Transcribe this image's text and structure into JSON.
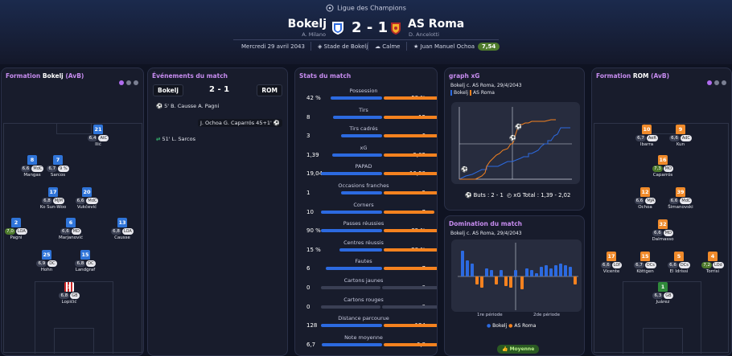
{
  "competition": "Ligue des Champions",
  "home": {
    "name": "Bokelj",
    "coach": "A. Milano",
    "score": "2"
  },
  "away": {
    "name": "AS Roma",
    "coach": "D. Ancelotti",
    "score": "1"
  },
  "score_sep": "-",
  "date": "Mercredi 29 avril 2043",
  "stadium": "Stade de Bokelj",
  "weather": "Calme",
  "referee": "Juan Manuel Ochoa",
  "referee_rating": "7,54",
  "colors": {
    "home": "#2c6ae0",
    "away": "#f5821f",
    "accent": "#c78cf0"
  },
  "lineup_home": {
    "title": "Formation",
    "team": "Bokelj",
    "formation": "(AvB)",
    "players": [
      {
        "num": "21",
        "rating": "6,4",
        "pos": "AtC",
        "name": "Ilić"
      },
      {
        "num": "8",
        "rating": "6,6",
        "pos": "MdC",
        "name": "Mangas"
      },
      {
        "num": "7",
        "rating": "6,7",
        "pos": "9 %",
        "name": "Sarcos"
      },
      {
        "num": "17",
        "rating": "6,8",
        "pos": "MJM",
        "name": "Ko Sun-Woo"
      },
      {
        "num": "20",
        "rating": "6,6",
        "pos": "MdC",
        "name": "Vukčević"
      },
      {
        "num": "2",
        "rating": "7,0",
        "pos": "LOA",
        "name": "Pagni"
      },
      {
        "num": "6",
        "rating": "6,6",
        "pos": "MD",
        "name": "Marjanović"
      },
      {
        "num": "13",
        "rating": "6,8",
        "pos": "LOA",
        "name": "Causse"
      },
      {
        "num": "25",
        "rating": "6,9",
        "pos": "DC",
        "name": "Hohn"
      },
      {
        "num": "15",
        "rating": "6,8",
        "pos": "DC",
        "name": "Landgraf"
      },
      {
        "num": "1",
        "rating": "6,8",
        "pos": "GB",
        "name": "Lopičić"
      }
    ]
  },
  "events": {
    "title": "Événements du match",
    "home": "Bokelj",
    "away": "ROM",
    "score": "2 - 1",
    "rows": [
      {
        "side": "left",
        "icon": "ball",
        "text": "5' B. Causse A. Pagni"
      },
      {
        "side": "right",
        "icon": "ball",
        "text": "J. Ochoa G. Caparrós 45+1'"
      },
      {
        "side": "left",
        "icon": "sub",
        "text": "51' L. Sarcos"
      }
    ]
  },
  "stats": {
    "title": "Stats du match",
    "rows": [
      {
        "label": "Possession",
        "home": "42 %",
        "away": "58 %",
        "h": 42,
        "a": 58
      },
      {
        "label": "Tirs",
        "home": "8",
        "away": "12",
        "h": 8,
        "a": 12
      },
      {
        "label": "Tirs cadrés",
        "home": "3",
        "away": "6",
        "h": 3,
        "a": 6
      },
      {
        "label": "xG",
        "home": "1,39",
        "away": "2,02",
        "h": 1.39,
        "a": 2.02
      },
      {
        "label": "PAPAD",
        "home": "19,04",
        "away": "16,50",
        "h": 19.04,
        "a": 16.5
      },
      {
        "label": "Occasions franches",
        "home": "1",
        "away": "2",
        "h": 1,
        "a": 2
      },
      {
        "label": "Corners",
        "home": "10",
        "away": "7",
        "h": 10,
        "a": 7
      },
      {
        "label": "Passes réussies",
        "home": "90 %",
        "away": "89 %",
        "h": 90,
        "a": 89
      },
      {
        "label": "Centres réussis",
        "home": "15 %",
        "away": "28 %",
        "h": 15,
        "a": 28
      },
      {
        "label": "Fautes",
        "home": "6",
        "away": "7",
        "h": 6,
        "a": 7
      },
      {
        "label": "Cartons jaunes",
        "home": "0",
        "away": "0",
        "h": 0,
        "a": 0
      },
      {
        "label": "Cartons rouges",
        "home": "0",
        "away": "0",
        "h": 0,
        "a": 0
      },
      {
        "label": "Distance parcourue",
        "home": "128",
        "away": "124",
        "h": 128,
        "a": 124
      },
      {
        "label": "Note moyenne",
        "home": "6,7",
        "away": "6,8",
        "h": 6.7,
        "a": 6.8
      }
    ]
  },
  "xg_graph": {
    "title": "graph xG",
    "subtitle": "Bokelj c. AS Roma, 29/4/2043",
    "legend_home": "Bokelj",
    "legend_away": "AS Roma",
    "goals_label": "Buts : 2 - 1",
    "xg_label": "xG Total : 1,39 - 2,02"
  },
  "domination": {
    "title": "Domination du match",
    "subtitle": "Bokelj c. AS Roma, 29/4/2043",
    "half1": "1re période",
    "half2": "2de période",
    "legend_home": "Bokelj",
    "legend_away": "AS Roma",
    "average_label": "Moyenne"
  },
  "lineup_away": {
    "title": "Formation",
    "team": "ROM",
    "formation": "(AvB)",
    "players": [
      {
        "num": "10",
        "rating": "6,7",
        "pos": "AeR",
        "name": "Ibarra"
      },
      {
        "num": "9",
        "rating": "6,6",
        "pos": "AdC",
        "name": "Kun"
      },
      {
        "num": "16",
        "rating": "7,3",
        "pos": "MO",
        "name": "Caparrós"
      },
      {
        "num": "12",
        "rating": "6,6",
        "pos": "MJA",
        "name": "Ochoa"
      },
      {
        "num": "39",
        "rating": "6,6",
        "pos": "MdC",
        "name": "Šimanovski"
      },
      {
        "num": "32",
        "rating": "6,6",
        "pos": "MD",
        "name": "Dalmasso"
      },
      {
        "num": "17",
        "rating": "6,6",
        "pos": "LOf",
        "name": "Vicente"
      },
      {
        "num": "15",
        "rating": "6,7",
        "pos": "DCs",
        "name": "Köttgen"
      },
      {
        "num": "5",
        "rating": "6,6",
        "pos": "DCs",
        "name": "El Idrissi"
      },
      {
        "num": "4",
        "rating": "7,2",
        "pos": "LOd",
        "name": "Torrisi"
      },
      {
        "num": "1",
        "rating": "6,3",
        "pos": "GB",
        "name": "Juárez"
      }
    ]
  }
}
